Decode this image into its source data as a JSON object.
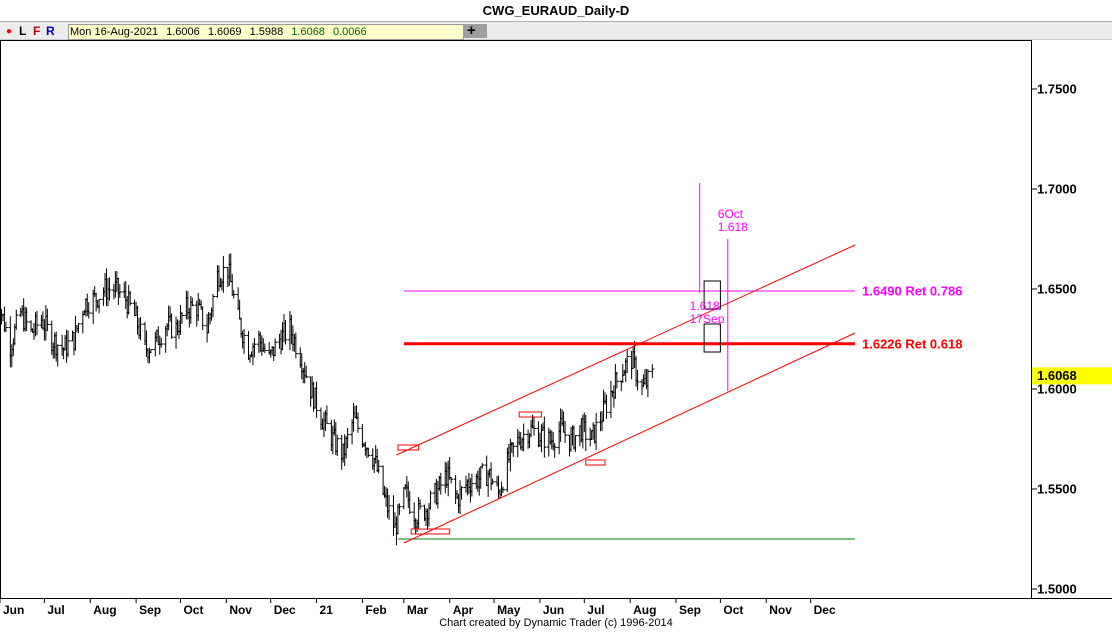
{
  "title": "CWG_EURAUD_Daily-D",
  "toolbar": {
    "dot": "●",
    "buttons": [
      "L",
      "F",
      "R"
    ],
    "ohlc": {
      "date": "Mon 16-Aug-2021",
      "open": "1.6006",
      "high": "1.6069",
      "low": "1.5988",
      "close": "1.6068",
      "change": "0.0066"
    },
    "plus": "+"
  },
  "footer": "Chart created by Dynamic Trader  (c) 1996-2014",
  "colors": {
    "bars": "#000000",
    "channel": "#ff0000",
    "retracement": "#ff00ff",
    "support": "#008000",
    "current_price_bg": "#ffff00"
  },
  "chart_data": {
    "type": "ohlc",
    "instrument": "EURAUD",
    "timeframe": "Daily",
    "x_axis": {
      "ticks": [
        "Jun",
        "Jul",
        "Aug",
        "Sep",
        "Oct",
        "Nov",
        "Dec",
        "21",
        "Feb",
        "Mar",
        "Apr",
        "May",
        "Jun",
        "Jul",
        "Aug",
        "Sep",
        "Oct",
        "Nov",
        "Dec"
      ],
      "range": [
        "2020-06-01",
        "2021-12-31"
      ]
    },
    "y_axis": {
      "ticks": [
        "1.7500",
        "1.7000",
        "1.6500",
        "1.6000",
        "1.5500",
        "1.5000"
      ],
      "ylim": [
        1.4955,
        1.7745
      ]
    },
    "current_price": "1.6068",
    "price_path": [
      [
        "2020-05-28",
        1.665
      ],
      [
        "2020-06-02",
        1.638
      ],
      [
        "2020-06-08",
        1.622
      ],
      [
        "2020-06-15",
        1.638
      ],
      [
        "2020-06-22",
        1.628
      ],
      [
        "2020-06-29",
        1.635
      ],
      [
        "2020-07-06",
        1.625
      ],
      [
        "2020-07-14",
        1.62
      ],
      [
        "2020-07-21",
        1.625
      ],
      [
        "2020-07-28",
        1.643
      ],
      [
        "2020-08-04",
        1.645
      ],
      [
        "2020-08-11",
        1.65
      ],
      [
        "2020-08-18",
        1.65
      ],
      [
        "2020-08-25",
        1.645
      ],
      [
        "2020-09-01",
        1.635
      ],
      [
        "2020-09-07",
        1.62
      ],
      [
        "2020-09-14",
        1.623
      ],
      [
        "2020-09-21",
        1.632
      ],
      [
        "2020-09-28",
        1.63
      ],
      [
        "2020-10-05",
        1.64
      ],
      [
        "2020-10-12",
        1.641
      ],
      [
        "2020-10-19",
        1.63
      ],
      [
        "2020-10-26",
        1.657
      ],
      [
        "2020-11-02",
        1.66
      ],
      [
        "2020-11-09",
        1.635
      ],
      [
        "2020-11-16",
        1.62
      ],
      [
        "2020-11-23",
        1.625
      ],
      [
        "2020-11-30",
        1.615
      ],
      [
        "2020-12-07",
        1.625
      ],
      [
        "2020-12-14",
        1.63
      ],
      [
        "2020-12-21",
        1.617
      ],
      [
        "2020-12-28",
        1.6
      ],
      [
        "2021-01-05",
        1.585
      ],
      [
        "2021-01-12",
        1.575
      ],
      [
        "2021-01-19",
        1.567
      ],
      [
        "2021-01-26",
        1.585
      ],
      [
        "2021-02-02",
        1.575
      ],
      [
        "2021-02-09",
        1.565
      ],
      [
        "2021-02-16",
        1.545
      ],
      [
        "2021-02-23",
        1.53
      ],
      [
        "2021-03-02",
        1.548
      ],
      [
        "2021-03-09",
        1.537
      ],
      [
        "2021-03-16",
        1.54
      ],
      [
        "2021-03-23",
        1.548
      ],
      [
        "2021-03-30",
        1.557
      ],
      [
        "2021-04-06",
        1.545
      ],
      [
        "2021-04-13",
        1.553
      ],
      [
        "2021-04-20",
        1.555
      ],
      [
        "2021-04-27",
        1.558
      ],
      [
        "2021-05-04",
        1.548
      ],
      [
        "2021-05-11",
        1.565
      ],
      [
        "2021-05-18",
        1.575
      ],
      [
        "2021-05-25",
        1.58
      ],
      [
        "2021-06-01",
        1.577
      ],
      [
        "2021-06-08",
        1.574
      ],
      [
        "2021-06-15",
        1.58
      ],
      [
        "2021-06-22",
        1.574
      ],
      [
        "2021-06-29",
        1.58
      ],
      [
        "2021-07-06",
        1.575
      ],
      [
        "2021-07-13",
        1.587
      ],
      [
        "2021-07-20",
        1.6
      ],
      [
        "2021-07-27",
        1.61
      ],
      [
        "2021-08-02",
        1.615
      ],
      [
        "2021-08-09",
        1.6
      ],
      [
        "2021-08-16",
        1.6068
      ]
    ],
    "channel_lines": [
      {
        "name": "upper",
        "from": [
          "2021-02-24",
          1.567
        ],
        "to": [
          "2021-12-31",
          1.672
        ]
      },
      {
        "name": "lower",
        "from": [
          "2021-03-01",
          1.523
        ],
        "to": [
          "2021-12-31",
          1.628
        ]
      }
    ],
    "horizontal_levels": [
      {
        "price": 1.649,
        "label": "1.6490 Ret 0.786",
        "color": "#ff00ff",
        "from": "2021-03-01"
      },
      {
        "price": 1.6226,
        "label": "1.6226 Ret 0.618",
        "color": "#ff0000",
        "from": "2021-03-01"
      },
      {
        "price": 1.525,
        "label": "",
        "color": "#008000",
        "from": "2021-02-25"
      }
    ],
    "time_projections": [
      {
        "date": "2021-09-17",
        "label_top": "1.618",
        "label_bottom": "17Sep",
        "y_top": 1.703,
        "y_bottom": 1.648
      },
      {
        "date": "2021-10-06",
        "label_top": "6Oct",
        "label_bottom": "1.618",
        "y_top": 1.675,
        "y_bottom": 1.599
      }
    ],
    "annotation_boxes": [
      {
        "date_from": "2021-02-25",
        "date_to": "2021-03-11",
        "price": 1.5705
      },
      {
        "date_from": "2021-03-06",
        "date_to": "2021-04-01",
        "price": 1.5285
      },
      {
        "date_from": "2021-05-18",
        "date_to": "2021-06-02",
        "price": 1.587
      },
      {
        "date_from": "2021-07-02",
        "date_to": "2021-07-15",
        "price": 1.563
      },
      {
        "date_from": "2021-09-20",
        "date_to": "2021-10-01",
        "price": 1.647
      },
      {
        "date_from": "2021-09-20",
        "date_to": "2021-10-01",
        "price": 1.6255
      }
    ]
  }
}
